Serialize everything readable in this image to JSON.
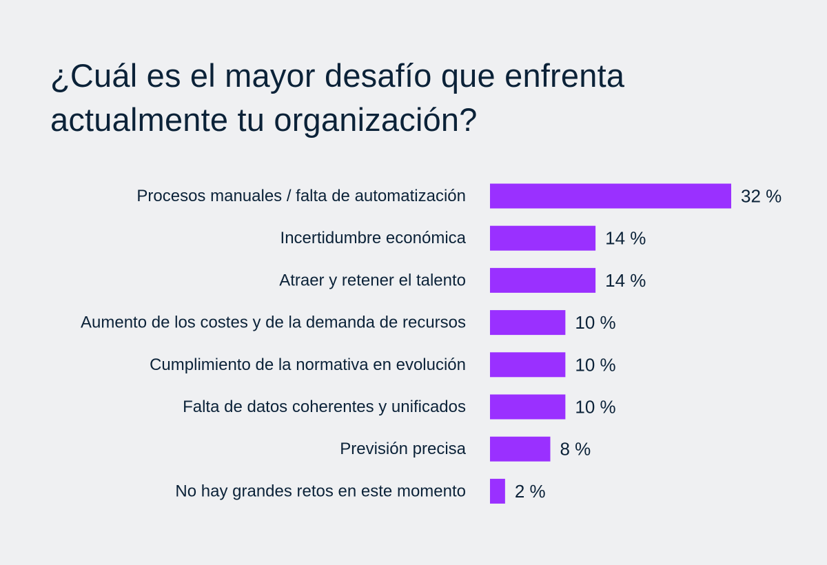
{
  "page": {
    "title_lines": [
      "¿Cuál es el mayor desafío que enfrenta",
      "actualmente tu organización?"
    ]
  },
  "colors": {
    "background": "#eff0f2",
    "text": "#0b2238",
    "bar": "#9a30ff"
  },
  "chart_data": {
    "type": "bar",
    "orientation": "horizontal",
    "title": "¿Cuál es el mayor desafío que enfrenta actualmente tu organización?",
    "categories": [
      "Procesos manuales / falta de automatización",
      "Incertidumbre económica",
      "Atraer y retener el talento",
      "Aumento de los costes y de la demanda de recursos",
      "Cumplimiento de la normativa en evolución",
      "Falta de datos coherentes y unificados",
      "Previsión precisa",
      "No hay grandes retos en este momento"
    ],
    "values": [
      32,
      14,
      14,
      10,
      10,
      10,
      8,
      2
    ],
    "value_labels": [
      "32 %",
      "14 %",
      "14 %",
      "10 %",
      "10 %",
      "10 %",
      "8 %",
      "2 %"
    ],
    "unit": "%",
    "xlim": [
      0,
      32
    ],
    "grid": false,
    "legend": "none"
  }
}
